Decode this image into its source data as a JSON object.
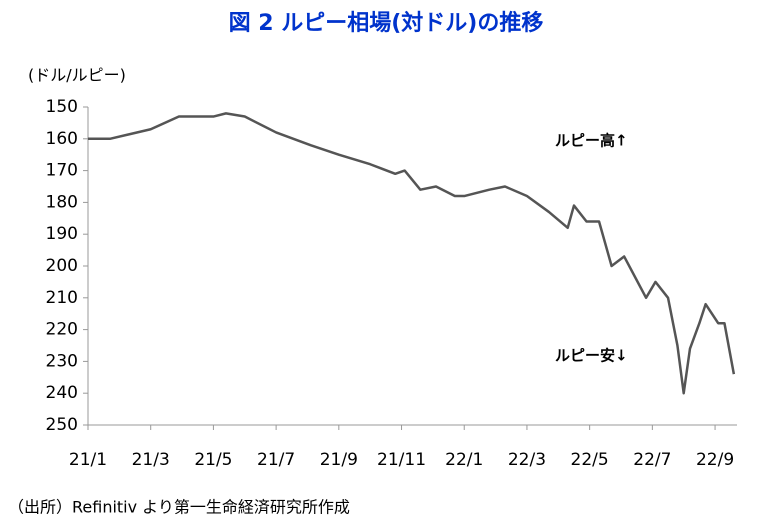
{
  "chart_data": {
    "type": "line",
    "title": "図 2  ルピー相場(対ドル)の推移",
    "y_label": "(ドル/ルピー)",
    "annotations": [
      "ルピー高↑",
      "ルピー安↓"
    ],
    "source": "（出所）Refinitiv より第一生命経済研究所作成",
    "x": [
      0,
      0.7,
      2,
      2.9,
      4,
      4.4,
      5,
      6,
      7.1,
      8,
      9,
      9.8,
      10.1,
      10.6,
      11.1,
      11.7,
      12,
      12.8,
      13.3,
      14,
      14.7,
      15.3,
      15.5,
      15.9,
      16.3,
      16.7,
      17.1,
      17.8,
      18.1,
      18.5,
      18.8,
      19.0,
      19.2,
      19.5,
      19.7,
      20.1,
      20.3,
      20.6
    ],
    "series": [
      {
        "name": "ルピー",
        "color": "#555555",
        "values": [
          160,
          160,
          157,
          153,
          153,
          152,
          153,
          158,
          162,
          165,
          168,
          171,
          170,
          176,
          175,
          178,
          178,
          176,
          175,
          178,
          183,
          188,
          181,
          186,
          186,
          200,
          197,
          210,
          205,
          210,
          225,
          240,
          226,
          218,
          212,
          218,
          218,
          234
        ]
      }
    ],
    "xlim": [
      0,
      20.7
    ],
    "xticks": [
      {
        "value": 0,
        "label": "21/1"
      },
      {
        "value": 2,
        "label": "21/3"
      },
      {
        "value": 4,
        "label": "21/5"
      },
      {
        "value": 6,
        "label": "21/7"
      },
      {
        "value": 8,
        "label": "21/9"
      },
      {
        "value": 10,
        "label": "21/11"
      },
      {
        "value": 12,
        "label": "22/1"
      },
      {
        "value": 14,
        "label": "22/3"
      },
      {
        "value": 16,
        "label": "22/5"
      },
      {
        "value": 18,
        "label": "22/7"
      },
      {
        "value": 20,
        "label": "22/9"
      }
    ],
    "ylim": [
      150,
      250
    ],
    "yticks": [
      150,
      160,
      170,
      180,
      190,
      200,
      210,
      220,
      230,
      240,
      250
    ],
    "y_inverted": true,
    "grid": false
  }
}
